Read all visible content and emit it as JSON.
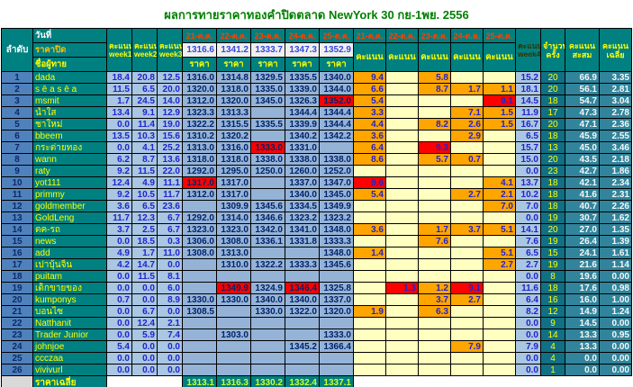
{
  "title": "ผลการทายราคาทองคำปิดตลาด NewYork 30 กย-1พย. 2556",
  "header": {
    "no": "ลำดับ",
    "date": "วันที่",
    "close": "ราคาปิด",
    "name": "ชื่อผู้ทาย",
    "score_word": "คะแนน",
    "weeks": [
      "week1",
      "week2",
      "week3"
    ],
    "week4": "week4",
    "price": "ราคา",
    "score": "คะแนน",
    "count1": "จำนวน",
    "count2": "ครั้ง",
    "total1": "คะแนน",
    "total2": "สะสม",
    "avg1": "คะแนน",
    "avg2": "เฉลี่ย"
  },
  "days": [
    {
      "date": "21-ต.ค.",
      "close": "1316.6"
    },
    {
      "date": "22-ต.ค.",
      "close": "1341.2"
    },
    {
      "date": "23-ต.ค.",
      "close": "1333.7"
    },
    {
      "date": "24-ต.ค.",
      "close": "1347.3"
    },
    {
      "date": "25-ต.ค.",
      "close": "1352.9"
    }
  ],
  "colors": {
    "winner_red": "#ff0000",
    "score_orange": "#ffa500",
    "score_empty_yellow": "#ffffc0",
    "price_blue": "#95b3d7",
    "week_blue": "#a9c6e3",
    "header_teal": "#008080",
    "rank_blue": "#4f81bd",
    "total_teal": "#31849b",
    "title_green": "#008000"
  },
  "rows": [
    {
      "no": "1",
      "name": "dada",
      "weeks": [
        "18.4",
        "20.8",
        "12.5"
      ],
      "prices": [
        "1316.0",
        "1314.8",
        "1329.5",
        "1335.5",
        "1340.0"
      ],
      "priceRed": [],
      "scores": [
        "9.4",
        "",
        "5.8",
        "",
        ""
      ],
      "scoreRed": [],
      "week4": "15.2",
      "count": "20",
      "total": "66.9",
      "avg": "3.35"
    },
    {
      "no": "2",
      "name": "s ē a s ē a",
      "weeks": [
        "11.5",
        "6.5",
        "20.0"
      ],
      "prices": [
        "1320.0",
        "1318.0",
        "1335.0",
        "1339.0",
        "1344.0"
      ],
      "priceRed": [],
      "scores": [
        "6.6",
        "",
        "8.7",
        "1.7",
        "1.1"
      ],
      "scoreRed": [],
      "week4": "18.1",
      "count": "20",
      "total": "56.1",
      "avg": "2.81"
    },
    {
      "no": "3",
      "name": "msmit",
      "weeks": [
        "1.7",
        "24.5",
        "14.0"
      ],
      "prices": [
        "1312.0",
        "1320.0",
        "1345.0",
        "1326.3",
        "1352.0"
      ],
      "priceRed": [
        4
      ],
      "scores": [
        "5.4",
        "",
        "",
        "",
        "9.1"
      ],
      "scoreRed": [
        4
      ],
      "week4": "14.5",
      "count": "18",
      "total": "54.7",
      "avg": "3.04"
    },
    {
      "no": "4",
      "name": "น้ำใส",
      "weeks": [
        "13.4",
        "9.1",
        "12.9"
      ],
      "prices": [
        "1323.3",
        "1313.3",
        "",
        "1344.4",
        "1344.4"
      ],
      "priceRed": [],
      "scores": [
        "3.3",
        "",
        "",
        "7.1",
        "1.5"
      ],
      "scoreRed": [],
      "week4": "11.9",
      "count": "17",
      "total": "47.3",
      "avg": "2.78"
    },
    {
      "no": "5",
      "name": "ชาใหม่",
      "weeks": [
        "0.0",
        "11.4",
        "19.0"
      ],
      "prices": [
        "1322.2",
        "1315.5",
        "1335.5",
        "1339.9",
        "1344.4"
      ],
      "priceRed": [],
      "scores": [
        "4.4",
        "",
        "8.2",
        "2.6",
        "1.5"
      ],
      "scoreRed": [],
      "week4": "16.7",
      "count": "20",
      "total": "47.1",
      "avg": "2.36"
    },
    {
      "no": "6",
      "name": "bbeem",
      "weeks": [
        "13.5",
        "10.3",
        "15.6"
      ],
      "prices": [
        "1310.2",
        "1320.2",
        "",
        "1340.2",
        "1342.2"
      ],
      "priceRed": [],
      "scores": [
        "3.6",
        "",
        "",
        "2.9",
        ""
      ],
      "scoreRed": [],
      "week4": "6.5",
      "count": "18",
      "total": "45.9",
      "avg": "2.55"
    },
    {
      "no": "7",
      "name": "กระต่ายทอง",
      "weeks": [
        "0.0",
        "4.1",
        "25.2"
      ],
      "prices": [
        "1313.0",
        "1316.0",
        "1333.0",
        "1331.0",
        ""
      ],
      "priceRed": [
        2
      ],
      "scores": [
        "6.4",
        "",
        "9.3",
        "",
        ""
      ],
      "scoreRed": [
        2
      ],
      "week4": "15.7",
      "count": "13",
      "total": "45.0",
      "avg": "3.46"
    },
    {
      "no": "8",
      "name": "wann",
      "weeks": [
        "6.2",
        "8.7",
        "13.6"
      ],
      "prices": [
        "1318.0",
        "1318.0",
        "1338.0",
        "1338.0",
        "1338.0"
      ],
      "priceRed": [],
      "scores": [
        "8.6",
        "",
        "5.7",
        "0.7",
        ""
      ],
      "scoreRed": [],
      "week4": "15.0",
      "count": "20",
      "total": "43.5",
      "avg": "2.18"
    },
    {
      "no": "9",
      "name": "raty",
      "weeks": [
        "9.2",
        "11.5",
        "22.0"
      ],
      "prices": [
        "1292.0",
        "1295.0",
        "1250.0",
        "1260.0",
        "1252.0"
      ],
      "priceRed": [],
      "scores": [
        "",
        "",
        "",
        "",
        ""
      ],
      "scoreRed": [],
      "week4": "0.0",
      "count": "23",
      "total": "42.7",
      "avg": "1.86"
    },
    {
      "no": "10",
      "name": "yot111",
      "weeks": [
        "12.4",
        "4.9",
        "11.1"
      ],
      "prices": [
        "1317.0",
        "1317.0",
        "",
        "1337.0",
        "1347.0"
      ],
      "priceRed": [
        0
      ],
      "scores": [
        "9.6",
        "",
        "",
        "",
        "4.1"
      ],
      "scoreRed": [
        0
      ],
      "week4": "13.7",
      "count": "18",
      "total": "42.1",
      "avg": "2.34"
    },
    {
      "no": "11",
      "name": "primmy",
      "weeks": [
        "9.2",
        "10.5",
        "11.7"
      ],
      "prices": [
        "1312.0",
        "1317.0",
        "",
        "1340.0",
        "1345.0"
      ],
      "priceRed": [],
      "scores": [
        "5.4",
        "",
        "",
        "2.7",
        "2.1"
      ],
      "scoreRed": [],
      "week4": "10.2",
      "count": "18",
      "total": "41.6",
      "avg": "2.31"
    },
    {
      "no": "12",
      "name": "goldmember",
      "weeks": [
        "3.6",
        "6.5",
        "23.6"
      ],
      "prices": [
        "",
        "1309.9",
        "1345.6",
        "1334.5",
        "1349.9"
      ],
      "priceRed": [],
      "scores": [
        "",
        "",
        "",
        "",
        "7.0"
      ],
      "scoreRed": [],
      "week4": "7.0",
      "count": "18",
      "total": "40.7",
      "avg": "2.26"
    },
    {
      "no": "13",
      "name": "GoldLeng",
      "weeks": [
        "11.7",
        "12.3",
        "6.7"
      ],
      "prices": [
        "1292.0",
        "1314.0",
        "1346.6",
        "1323.2",
        "1323.2"
      ],
      "priceRed": [],
      "scores": [
        "",
        "",
        "",
        "",
        ""
      ],
      "scoreRed": [],
      "week4": "0.0",
      "count": "19",
      "total": "30.7",
      "avg": "1.62"
    },
    {
      "no": "14",
      "name": "ตค-รถ",
      "weeks": [
        "3.7",
        "2.5",
        "6.7"
      ],
      "prices": [
        "1323.0",
        "1323.0",
        "1342.0",
        "1341.0",
        "1348.0"
      ],
      "priceRed": [],
      "scores": [
        "3.6",
        "",
        "1.7",
        "3.7",
        "5.1"
      ],
      "scoreRed": [],
      "week4": "14.1",
      "count": "20",
      "total": "27.0",
      "avg": "1.35"
    },
    {
      "no": "15",
      "name": "news",
      "weeks": [
        "0.0",
        "18.5",
        "0.3"
      ],
      "prices": [
        "1306.0",
        "1308.0",
        "1336.1",
        "1331.8",
        "1333.3"
      ],
      "priceRed": [],
      "scores": [
        "",
        "",
        "7.6",
        "",
        ""
      ],
      "scoreRed": [],
      "week4": "7.6",
      "count": "19",
      "total": "26.4",
      "avg": "1.39"
    },
    {
      "no": "16",
      "name": "add",
      "weeks": [
        "4.9",
        "1.7",
        "11.0"
      ],
      "prices": [
        "1308.0",
        "1313.0",
        "",
        "",
        "1348.0"
      ],
      "priceRed": [],
      "scores": [
        "1.4",
        "",
        "",
        "",
        "5.1"
      ],
      "scoreRed": [],
      "week4": "6.5",
      "count": "15",
      "total": "24.1",
      "avg": "1.61"
    },
    {
      "no": "17",
      "name": "เปาบุ้นจิ้น",
      "weeks": [
        "4.2",
        "14.7",
        "0.0"
      ],
      "prices": [
        "",
        "1310.0",
        "1322.2",
        "1333.3",
        "1345.6"
      ],
      "priceRed": [],
      "scores": [
        "",
        "",
        "",
        "",
        "2.7"
      ],
      "scoreRed": [],
      "week4": "2.7",
      "count": "19",
      "total": "21.6",
      "avg": "1.14"
    },
    {
      "no": "18",
      "name": "puitam",
      "weeks": [
        "0.0",
        "11.5",
        "8.1"
      ],
      "prices": [
        "",
        "",
        "",
        "",
        ""
      ],
      "priceRed": [],
      "scores": [
        "",
        "",
        "",
        "",
        ""
      ],
      "scoreRed": [],
      "week4": "0.0",
      "count": "8",
      "total": "19.6",
      "avg": "0.00"
    },
    {
      "no": "19",
      "name": "เด็กขายของ",
      "weeks": [
        "0.0",
        "0.0",
        "6.0"
      ],
      "prices": [
        "",
        "1349.9",
        "1324.9",
        "1346.4",
        "1325.8"
      ],
      "priceRed": [
        1,
        3
      ],
      "scores": [
        "",
        "1.3",
        "1.2",
        "9.1",
        ""
      ],
      "scoreRed": [
        1,
        3
      ],
      "week4": "11.6",
      "count": "18",
      "total": "17.6",
      "avg": "0.98"
    },
    {
      "no": "20",
      "name": "kumponys",
      "weeks": [
        "0.7",
        "0.0",
        "8.9"
      ],
      "prices": [
        "1330.0",
        "1330.0",
        "1340.0",
        "1340.0",
        "1337.0"
      ],
      "priceRed": [],
      "scores": [
        "",
        "",
        "3.7",
        "2.7",
        ""
      ],
      "scoreRed": [],
      "week4": "6.4",
      "count": "16",
      "total": "16.0",
      "avg": "1.00"
    },
    {
      "no": "21",
      "name": "บอนไซ",
      "weeks": [
        "0.0",
        "6.7",
        "0.0"
      ],
      "prices": [
        "1308.5",
        "",
        "1330.0",
        "1322.0",
        "1320.0"
      ],
      "priceRed": [],
      "scores": [
        "1.9",
        "",
        "6.3",
        "",
        ""
      ],
      "scoreRed": [],
      "week4": "8.2",
      "count": "12",
      "total": "14.9",
      "avg": "1.24"
    },
    {
      "no": "22",
      "name": "Natthanit",
      "weeks": [
        "0.0",
        "12.4",
        "2.1"
      ],
      "prices": [
        "",
        "",
        "",
        "",
        ""
      ],
      "priceRed": [],
      "scores": [
        "",
        "",
        "",
        "",
        ""
      ],
      "scoreRed": [],
      "week4": "0.0",
      "count": "9",
      "total": "14.5",
      "avg": "0.00"
    },
    {
      "no": "23",
      "name": "Trader Junior",
      "weeks": [
        "0.0",
        "5.9",
        "7.4"
      ],
      "prices": [
        "",
        "1303.0",
        "",
        "",
        "1333.0"
      ],
      "priceRed": [],
      "scores": [
        "",
        "",
        "",
        "",
        ""
      ],
      "scoreRed": [],
      "week4": "0.0",
      "count": "14",
      "total": "13.3",
      "avg": "0.95"
    },
    {
      "no": "24",
      "name": "johnjoe",
      "weeks": [
        "5.4",
        "0.0",
        "0.0"
      ],
      "prices": [
        "",
        "",
        "",
        "1345.2",
        "1366.4"
      ],
      "priceRed": [],
      "scores": [
        "",
        "",
        "",
        "7.9",
        ""
      ],
      "scoreRed": [],
      "week4": "7.9",
      "count": "4",
      "total": "13.3",
      "avg": "0.00"
    },
    {
      "no": "25",
      "name": "ccczaa",
      "weeks": [
        "0.0",
        "0.0",
        "0.0"
      ],
      "prices": [
        "",
        "",
        "",
        "",
        ""
      ],
      "priceRed": [],
      "scores": [
        "",
        "",
        "",
        "",
        ""
      ],
      "scoreRed": [],
      "week4": "0.0",
      "count": "4",
      "total": "0.0",
      "avg": "0.00"
    },
    {
      "no": "26",
      "name": "vivivurl",
      "weeks": [
        "0.0",
        "0.0",
        "0.0"
      ],
      "prices": [
        "",
        "",
        "",
        "",
        ""
      ],
      "priceRed": [],
      "scores": [
        "",
        "",
        "",
        "",
        ""
      ],
      "scoreRed": [],
      "week4": "0.0",
      "count": "1",
      "total": "0.0",
      "avg": "0.00"
    }
  ],
  "footer": {
    "label": "ราคาเฉลี่ย",
    "values": [
      "1313.1",
      "1316.3",
      "1330.2",
      "1332.4",
      "1337.1"
    ]
  }
}
